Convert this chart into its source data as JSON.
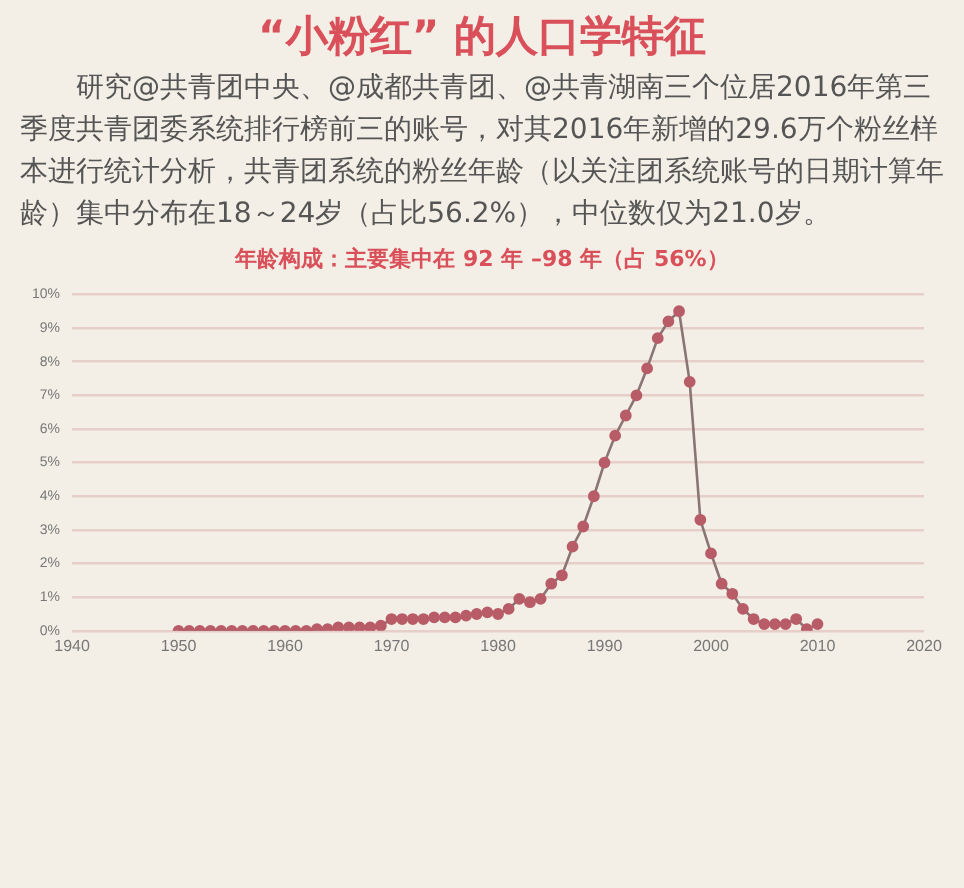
{
  "chart_data": {
    "type": "line",
    "title": "“小粉红” 的人口学特征",
    "annotations": [
      "研究@共青团中央、@成都共青团、@共青湖南三个位居2016年第三季度共青团委系统排行榜前三的账号，对其2016年新增的29.6万个粉丝样本进行统计分析，共青团系统的粉丝年龄（以关注团系统账号的日期计算年龄）集中分布在18～24岁（占比56.2%），中位数仅为21.0岁。"
    ],
    "subtitle": "年龄构成：主要集中在 92 年 –98 年（占 56%）",
    "x": [
      1950,
      1951,
      1952,
      1953,
      1954,
      1955,
      1956,
      1957,
      1958,
      1959,
      1960,
      1961,
      1962,
      1963,
      1964,
      1965,
      1966,
      1967,
      1968,
      1969,
      1970,
      1971,
      1972,
      1973,
      1974,
      1975,
      1976,
      1977,
      1978,
      1979,
      1980,
      1981,
      1982,
      1983,
      1984,
      1985,
      1986,
      1987,
      1988,
      1989,
      1990,
      1991,
      1992,
      1993,
      1994,
      1995,
      1996,
      1997,
      1998,
      1999,
      2000,
      2001,
      2002,
      2003,
      2004,
      2005,
      2006,
      2007,
      2008,
      2009,
      2010
    ],
    "series": [
      {
        "color": "#b85c68",
        "values": [
          0,
          0,
          0,
          0,
          0,
          0,
          0,
          0,
          0,
          0,
          0,
          0,
          0,
          0.05,
          0.05,
          0.1,
          0.1,
          0.1,
          0.1,
          0.15,
          0.35,
          0.35,
          0.35,
          0.35,
          0.4,
          0.4,
          0.4,
          0.45,
          0.5,
          0.55,
          0.5,
          0.65,
          0.95,
          0.85,
          0.95,
          1.4,
          1.65,
          2.5,
          3.1,
          4.0,
          5.0,
          5.8,
          6.4,
          7.0,
          7.8,
          8.7,
          9.2,
          9.5,
          7.4,
          3.3,
          2.3,
          1.4,
          1.1,
          0.65,
          0.35,
          0.2,
          0.2,
          0.2,
          0.35,
          0.05,
          0.2
        ]
      }
    ],
    "xlim": [
      1940,
      2020
    ],
    "xticks": [
      1940,
      1950,
      1960,
      1970,
      1980,
      1990,
      2000,
      2010,
      2020
    ],
    "ylim": [
      0,
      10
    ],
    "yticks": [
      {
        "value": 0,
        "label": "0%"
      },
      {
        "value": 1,
        "label": "1%"
      },
      {
        "value": 2,
        "label": "2%"
      },
      {
        "value": 3,
        "label": "3%"
      },
      {
        "value": 4,
        "label": "4%"
      },
      {
        "value": 5,
        "label": "5%"
      },
      {
        "value": 6,
        "label": "6%"
      },
      {
        "value": 7,
        "label": "7%"
      },
      {
        "value": 8,
        "label": "8%"
      },
      {
        "value": 9,
        "label": "9%"
      },
      {
        "value": 10,
        "label": "10%"
      }
    ],
    "grid": "y",
    "marker": "circle",
    "line_style": "solid",
    "legend": false
  }
}
